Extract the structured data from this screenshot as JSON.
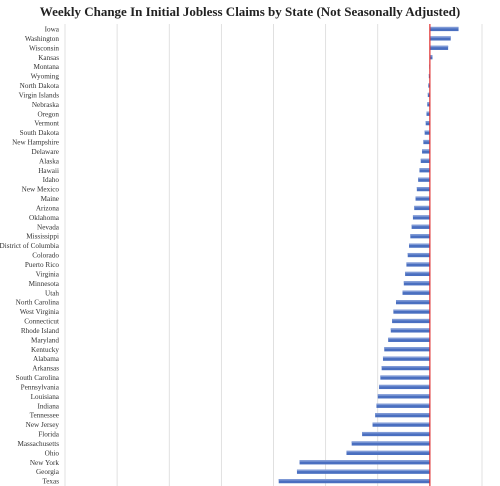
{
  "title": "Weekly Change In Initial Jobless Claims by State (Not Seasonally Adjusted)",
  "colors": {
    "bar": "#4a6fc0",
    "bar_highlight": "#7f9ad6",
    "zero_line": "#e03030",
    "grid": "#d9d9d9"
  },
  "chart_data": {
    "type": "bar",
    "orientation": "horizontal",
    "title": "Weekly Change In Initial Jobless Claims by State (Not Seasonally Adjusted)",
    "xlim": [
      -14000,
      2000
    ],
    "grid": true,
    "categories": [
      "Iowa",
      "Washington",
      "Wisconsin",
      "Kansas",
      "Montana",
      "Wyoming",
      "North Dakota",
      "Virgin Islands",
      "Nebraska",
      "Oregon",
      "Vermont",
      "South Dakota",
      "New Hampshire",
      "Delaware",
      "Alaska",
      "Hawaii",
      "Idaho",
      "New Mexico",
      "Maine",
      "Arizona",
      "Oklahoma",
      "Nevada",
      "Mississippi",
      "District of Columbia",
      "Colorado",
      "Puerto Rico",
      "Virginia",
      "Minnesota",
      "Utah",
      "North Carolina",
      "West Virginia",
      "Connecticut",
      "Rhode Island",
      "Maryland",
      "Kentucky",
      "Alabama",
      "Arkansas",
      "South Carolina",
      "Pennsylvania",
      "Louisiana",
      "Indiana",
      "Tennessee",
      "New Jersey",
      "Florida",
      "Massachusetts",
      "Ohio",
      "New York",
      "Georgia",
      "Texas"
    ],
    "values": [
      1100,
      800,
      700,
      100,
      -20,
      -40,
      -60,
      -80,
      -100,
      -130,
      -160,
      -200,
      -250,
      -300,
      -350,
      -400,
      -450,
      -500,
      -550,
      -600,
      -650,
      -700,
      -750,
      -800,
      -850,
      -900,
      -950,
      -1000,
      -1050,
      -1300,
      -1400,
      -1450,
      -1500,
      -1600,
      -1750,
      -1800,
      -1850,
      -1900,
      -1950,
      -2000,
      -2050,
      -2100,
      -2200,
      -2600,
      -3000,
      -3200,
      -5000,
      -5100,
      -5800
    ]
  }
}
